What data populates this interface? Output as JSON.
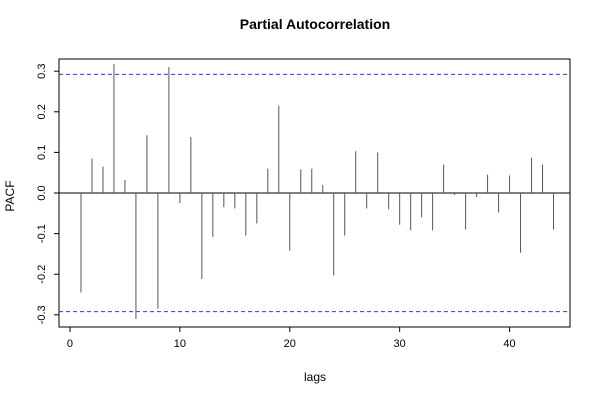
{
  "chart_data": {
    "type": "bar",
    "title": "Partial Autocorrelation",
    "xlabel": "lags",
    "ylabel": "PACF",
    "xlim": [
      0,
      45
    ],
    "ylim": [
      -0.33,
      0.33
    ],
    "x_ticks": [
      0,
      10,
      20,
      30,
      40
    ],
    "y_ticks": [
      -0.3,
      -0.2,
      -0.1,
      0.0,
      0.1,
      0.2,
      0.3
    ],
    "x_tick_labels": [
      "0",
      "10",
      "20",
      "30",
      "40"
    ],
    "y_tick_labels": [
      "-0.3",
      "-0.2",
      "-0.1",
      "0.0",
      "0.1",
      "0.2",
      "0.3"
    ],
    "confidence_band": 0.292,
    "colors": {
      "spike": "#555555",
      "band": "#3333ff",
      "zero": "#000000",
      "frame": "#000000"
    },
    "x": [
      1,
      2,
      3,
      4,
      5,
      6,
      7,
      8,
      9,
      10,
      11,
      12,
      13,
      14,
      15,
      16,
      17,
      18,
      19,
      20,
      21,
      22,
      23,
      24,
      25,
      26,
      27,
      28,
      29,
      30,
      31,
      32,
      33,
      34,
      35,
      36,
      37,
      38,
      39,
      40,
      41,
      42,
      43,
      44
    ],
    "values": [
      -0.245,
      0.085,
      0.065,
      0.318,
      0.032,
      -0.31,
      0.142,
      -0.285,
      0.31,
      -0.025,
      0.138,
      -0.212,
      -0.108,
      -0.035,
      -0.038,
      -0.105,
      -0.075,
      0.06,
      0.215,
      -0.142,
      0.058,
      0.06,
      0.02,
      -0.203,
      -0.105,
      0.103,
      -0.038,
      0.1,
      -0.04,
      -0.078,
      -0.092,
      -0.06,
      -0.092,
      0.07,
      -0.005,
      -0.09,
      -0.01,
      0.045,
      -0.048,
      0.043,
      -0.147,
      0.087,
      0.07,
      -0.09
    ]
  }
}
